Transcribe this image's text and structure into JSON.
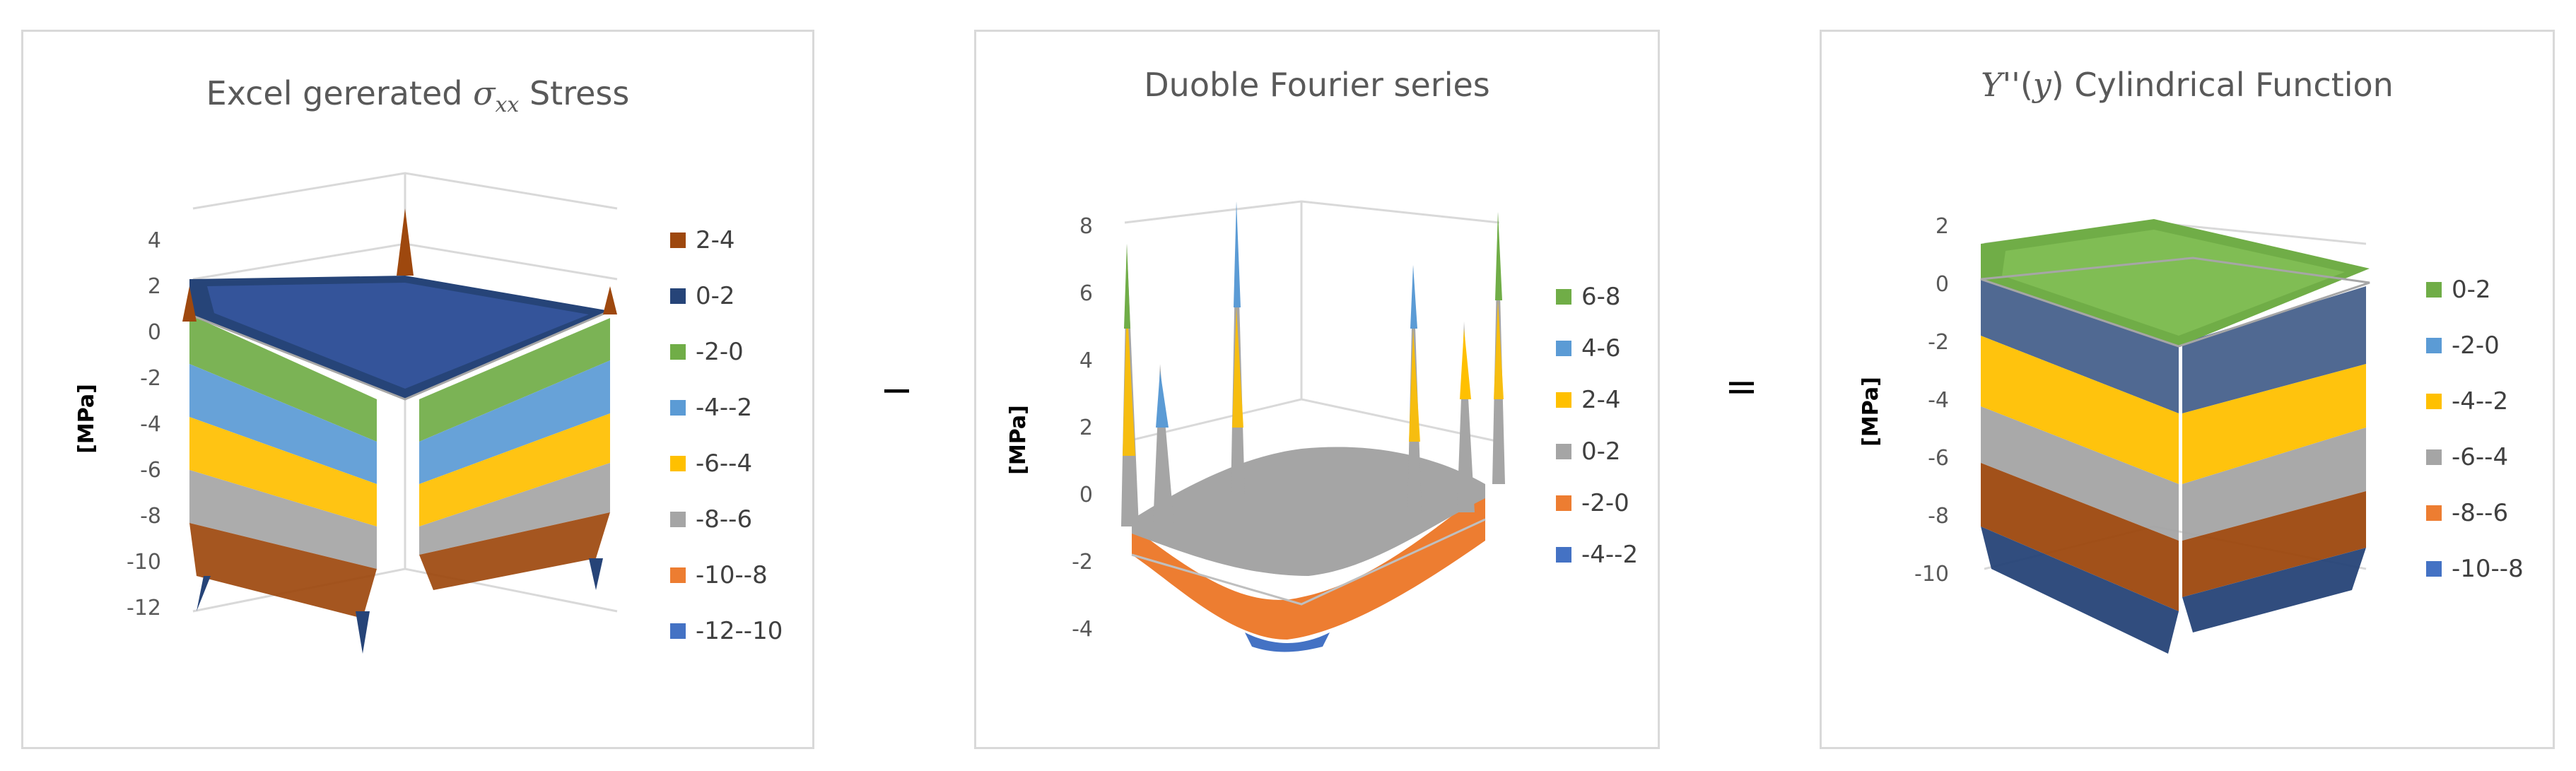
{
  "operators": {
    "minus": "−",
    "equals": "="
  },
  "chart_data": [
    {
      "type": "surface",
      "title_parts": {
        "pre": "Excel gererated ",
        "sym": "σ",
        "sub": "xx",
        "post": " Stress"
      },
      "ylabel": "[MPa]",
      "zlim": [
        -12,
        4
      ],
      "ticks": [
        "4",
        "2",
        "0",
        "-2",
        "-4",
        "-6",
        "-8",
        "-10",
        "-12"
      ],
      "legend": [
        {
          "label": "2-4",
          "color": "#9e480e"
        },
        {
          "label": "0-2",
          "color": "#264478"
        },
        {
          "label": "-2-0",
          "color": "#70ad47"
        },
        {
          "label": "-4--2",
          "color": "#5b9bd5"
        },
        {
          "label": "-6--4",
          "color": "#ffc000"
        },
        {
          "label": "-8--6",
          "color": "#a5a5a5"
        },
        {
          "label": "-10--8",
          "color": "#ed7d31"
        },
        {
          "label": "-12--10",
          "color": "#4472c4"
        }
      ]
    },
    {
      "type": "surface",
      "title": "Duoble Fourier series",
      "ylabel": "[MPa]",
      "zlim": [
        -4,
        8
      ],
      "ticks": [
        "8",
        "6",
        "4",
        "2",
        "0",
        "-2",
        "-4"
      ],
      "legend": [
        {
          "label": "6-8",
          "color": "#70ad47"
        },
        {
          "label": "4-6",
          "color": "#5b9bd5"
        },
        {
          "label": "2-4",
          "color": "#ffc000"
        },
        {
          "label": "0-2",
          "color": "#a5a5a5"
        },
        {
          "label": "-2-0",
          "color": "#ed7d31"
        },
        {
          "label": "-4--2",
          "color": "#4472c4"
        }
      ]
    },
    {
      "type": "surface",
      "title_parts": {
        "pre": "",
        "sym": "Y",
        "mid": "''(",
        "sym2": "y",
        "post": ") Cylindrical Function"
      },
      "ylabel": "[MPa]",
      "zlim": [
        -10,
        2
      ],
      "ticks": [
        "2",
        "0",
        "-2",
        "-4",
        "-6",
        "-8",
        "-10"
      ],
      "legend": [
        {
          "label": "0-2",
          "color": "#70ad47"
        },
        {
          "label": "-2-0",
          "color": "#5b9bd5"
        },
        {
          "label": "-4--2",
          "color": "#ffc000"
        },
        {
          "label": "-6--4",
          "color": "#a5a5a5"
        },
        {
          "label": "-8--6",
          "color": "#ed7d31"
        },
        {
          "label": "-10--8",
          "color": "#4472c4"
        }
      ]
    }
  ]
}
